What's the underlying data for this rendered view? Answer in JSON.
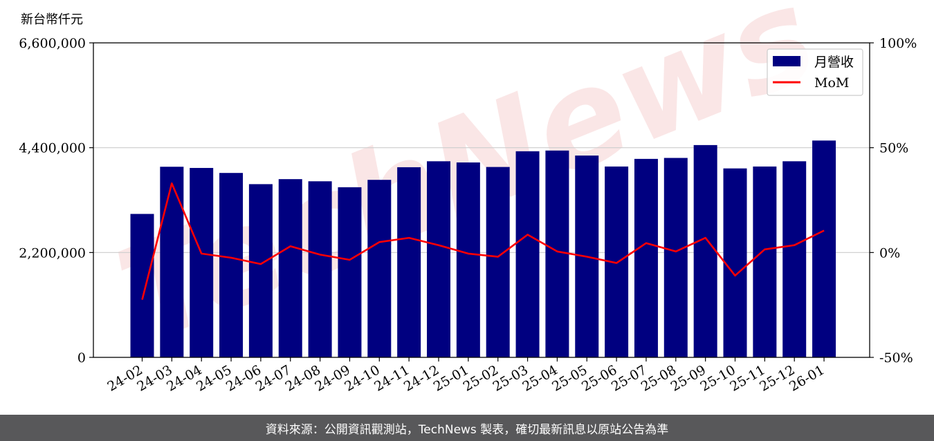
{
  "chart_data": {
    "type": "bar",
    "y_unit_label": "新台幣仟元",
    "categories": [
      "24-02",
      "24-03",
      "24-04",
      "24-05",
      "24-06",
      "24-07",
      "24-08",
      "24-09",
      "24-10",
      "24-11",
      "24-12",
      "25-01",
      "25-02",
      "25-03",
      "25-04",
      "25-05",
      "25-06",
      "25-07",
      "25-08",
      "25-09",
      "25-10",
      "25-11",
      "25-12",
      "26-01"
    ],
    "series": [
      {
        "name": "月營收",
        "kind": "bar",
        "color": "#000080",
        "axis": "left",
        "values": [
          3010000,
          4000000,
          3975000,
          3870000,
          3635000,
          3740000,
          3695000,
          3570000,
          3725000,
          3990000,
          4115000,
          4090000,
          3995000,
          4325000,
          4340000,
          4235000,
          4005000,
          4165000,
          4185000,
          4455000,
          3965000,
          4005000,
          4115000,
          4550000
        ]
      },
      {
        "name": "MoM",
        "kind": "line",
        "color": "#ff0000",
        "axis": "right",
        "values": [
          -22.5,
          33.0,
          -0.5,
          -2.5,
          -5.5,
          3.0,
          -1.0,
          -3.5,
          5.0,
          7.0,
          3.5,
          -0.5,
          -2.0,
          8.5,
          0.5,
          -2.0,
          -5.0,
          4.5,
          0.5,
          7.0,
          -11.0,
          1.5,
          3.5,
          10.5
        ]
      }
    ],
    "ylim_left": [
      0,
      6600000
    ],
    "yticks_left": [
      0,
      2200000,
      4400000,
      6600000
    ],
    "ytick_labels_left": [
      "0",
      "2,200,000",
      "4,400,000",
      "6,600,000"
    ],
    "ylim_right": [
      -50,
      100
    ],
    "yticks_right": [
      -50,
      0,
      50,
      100
    ],
    "ytick_labels_right": [
      "-50%",
      "0%",
      "50%",
      "100%"
    ],
    "grid": "horizontal",
    "legend_placement": "top-right",
    "watermark": "TechNews"
  },
  "footer": {
    "text": "資料來源：公開資訊觀測站，TechNews 製表，確切最新訊息以原站公告為準"
  }
}
